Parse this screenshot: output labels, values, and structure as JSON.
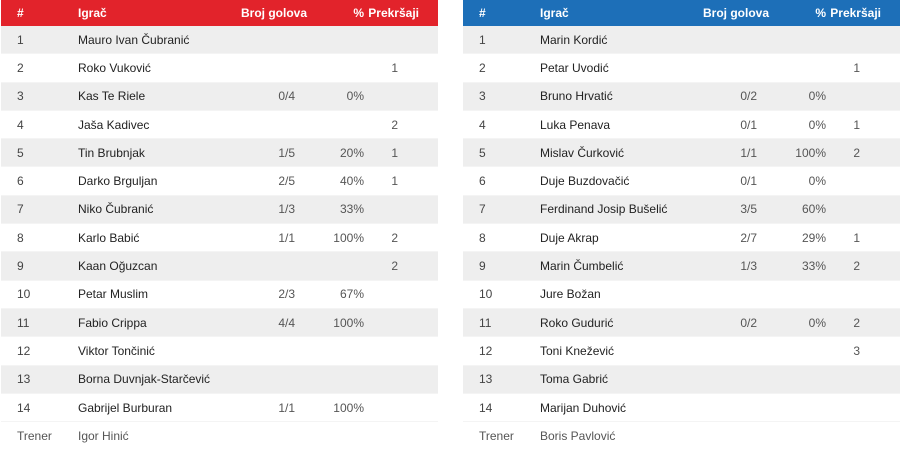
{
  "headers": {
    "num": "#",
    "player": "Igrač",
    "goals": "Broj golova",
    "pct": "%",
    "fouls": "Prekršaji"
  },
  "colors": {
    "home_header": "#e2232b",
    "away_header": "#1d6fb8"
  },
  "home": {
    "players": [
      {
        "num": "1",
        "name": "Mauro Ivan Čubranić",
        "goals": "",
        "pct": "",
        "fouls": ""
      },
      {
        "num": "2",
        "name": "Roko Vuković",
        "goals": "",
        "pct": "",
        "fouls": "1"
      },
      {
        "num": "3",
        "name": "Kas Te Riele",
        "goals": "0/4",
        "pct": "0%",
        "fouls": ""
      },
      {
        "num": "4",
        "name": "Jaša Kadivec",
        "goals": "",
        "pct": "",
        "fouls": "2"
      },
      {
        "num": "5",
        "name": "Tin Brubnjak",
        "goals": "1/5",
        "pct": "20%",
        "fouls": "1"
      },
      {
        "num": "6",
        "name": "Darko Brguljan",
        "goals": "2/5",
        "pct": "40%",
        "fouls": "1"
      },
      {
        "num": "7",
        "name": "Niko Čubranić",
        "goals": "1/3",
        "pct": "33%",
        "fouls": ""
      },
      {
        "num": "8",
        "name": "Karlo Babić",
        "goals": "1/1",
        "pct": "100%",
        "fouls": "2"
      },
      {
        "num": "9",
        "name": "Kaan Oğuzcan",
        "goals": "",
        "pct": "",
        "fouls": "2"
      },
      {
        "num": "10",
        "name": "Petar Muslim",
        "goals": "2/3",
        "pct": "67%",
        "fouls": ""
      },
      {
        "num": "11",
        "name": "Fabio Crippa",
        "goals": "4/4",
        "pct": "100%",
        "fouls": ""
      },
      {
        "num": "12",
        "name": "Viktor Tončinić",
        "goals": "",
        "pct": "",
        "fouls": ""
      },
      {
        "num": "13",
        "name": "Borna Duvnjak-Starčević",
        "goals": "",
        "pct": "",
        "fouls": ""
      },
      {
        "num": "14",
        "name": "Gabrijel Burburan",
        "goals": "1/1",
        "pct": "100%",
        "fouls": ""
      }
    ],
    "coach_label": "Trener",
    "coach_name": "Igor Hinić"
  },
  "away": {
    "players": [
      {
        "num": "1",
        "name": "Marin Kordić",
        "goals": "",
        "pct": "",
        "fouls": ""
      },
      {
        "num": "2",
        "name": "Petar Uvodić",
        "goals": "",
        "pct": "",
        "fouls": "1"
      },
      {
        "num": "3",
        "name": "Bruno Hrvatić",
        "goals": "0/2",
        "pct": "0%",
        "fouls": ""
      },
      {
        "num": "4",
        "name": "Luka Penava",
        "goals": "0/1",
        "pct": "0%",
        "fouls": "1"
      },
      {
        "num": "5",
        "name": "Mislav Čurković",
        "goals": "1/1",
        "pct": "100%",
        "fouls": "2"
      },
      {
        "num": "6",
        "name": "Duje Buzdovačić",
        "goals": "0/1",
        "pct": "0%",
        "fouls": ""
      },
      {
        "num": "7",
        "name": "Ferdinand Josip Bušelić",
        "goals": "3/5",
        "pct": "60%",
        "fouls": ""
      },
      {
        "num": "8",
        "name": "Duje Akrap",
        "goals": "2/7",
        "pct": "29%",
        "fouls": "1"
      },
      {
        "num": "9",
        "name": "Marin Čumbelić",
        "goals": "1/3",
        "pct": "33%",
        "fouls": "2"
      },
      {
        "num": "10",
        "name": "Jure Božan",
        "goals": "",
        "pct": "",
        "fouls": ""
      },
      {
        "num": "11",
        "name": "Roko Gudurić",
        "goals": "0/2",
        "pct": "0%",
        "fouls": "2"
      },
      {
        "num": "12",
        "name": "Toni Knežević",
        "goals": "",
        "pct": "",
        "fouls": "3"
      },
      {
        "num": "13",
        "name": "Toma Gabrić",
        "goals": "",
        "pct": "",
        "fouls": ""
      },
      {
        "num": "14",
        "name": "Marijan Duhović",
        "goals": "",
        "pct": "",
        "fouls": ""
      }
    ],
    "coach_label": "Trener",
    "coach_name": "Boris Pavlović"
  }
}
